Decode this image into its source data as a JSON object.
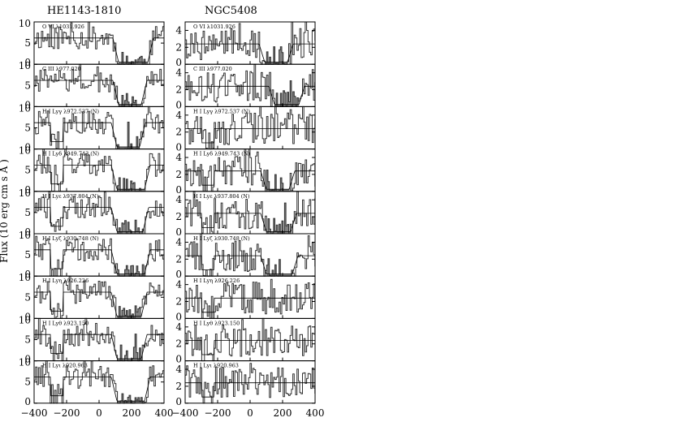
{
  "chart_data": {
    "type": "stacked-line-panels",
    "ylabel": "Flux (10   erg cm   s   Å  )",
    "columns": [
      {
        "title": "HE1143-1810",
        "xlim": [
          -400,
          400
        ],
        "xticks": [
          "−400",
          "−200",
          "0",
          "200",
          "400"
        ],
        "panels": [
          {
            "label": "O VI λ1031.926",
            "ylim": [
              0,
              10
            ],
            "yticks": [
              "0",
              "5",
              "10"
            ],
            "shade": [
              [
                120,
                300
              ]
            ]
          },
          {
            "label": "C III λ977.020",
            "ylim": [
              0,
              10
            ],
            "yticks": [
              "0",
              "5",
              "10"
            ],
            "shade": [
              [
                120,
                260
              ]
            ]
          },
          {
            "label": "H I Lyγ λ972.537 (N)",
            "ylim": [
              0,
              10
            ],
            "yticks": [
              "0",
              "5",
              "10"
            ],
            "shade": [
              [
                110,
                250
              ]
            ]
          },
          {
            "label": "H I Lyδ λ949.743 (N)",
            "ylim": [
              0,
              10
            ],
            "yticks": [
              "0",
              "5",
              "10"
            ],
            "shade": [
              [
                110,
                280
              ]
            ]
          },
          {
            "label": "H I Lyε λ937.804 (N)",
            "ylim": [
              0,
              10
            ],
            "yticks": [
              "0",
              "5",
              "10"
            ],
            "shade": [
              [
                110,
                270
              ]
            ]
          },
          {
            "label": "H I Lyζ λ930.748 (N)",
            "ylim": [
              0,
              10
            ],
            "yticks": [
              "0",
              "5",
              "10"
            ],
            "shade": [
              [
                110,
                280
              ]
            ]
          },
          {
            "label": "H I Lyη λ926.226",
            "ylim": [
              0,
              10
            ],
            "yticks": [
              "0",
              "5",
              "10"
            ],
            "shade": [
              [
                110,
                260
              ]
            ]
          },
          {
            "label": "H I Lyθ λ923.150",
            "ylim": [
              0,
              10
            ],
            "yticks": [
              "0",
              "5",
              "10"
            ],
            "shade": [
              [
                110,
                260
              ]
            ]
          },
          {
            "label": "H I Lyι λ920.963",
            "ylim": [
              0,
              10
            ],
            "yticks": [
              "0",
              "5",
              "10"
            ],
            "shade": [
              [
                110,
                280
              ]
            ]
          }
        ]
      },
      {
        "title": "NGC5408",
        "xlim": [
          -400,
          400
        ],
        "xticks": [
          "−400",
          "−200",
          "0",
          "200",
          "400"
        ],
        "panels": [
          {
            "label": "O VI λ1031.926",
            "ylim": [
              0,
              5
            ],
            "yticks": [
              "0",
              "2",
              "4"
            ],
            "shade": [
              [
                90,
                230
              ]
            ]
          },
          {
            "label": "C III λ977.020",
            "ylim": [
              0,
              5
            ],
            "yticks": [
              "0",
              "2",
              "4"
            ],
            "shade": [
              [
                150,
                300
              ]
            ]
          },
          {
            "label": "H I Lyγ λ972.537 (N)",
            "ylim": [
              0,
              5
            ],
            "yticks": [
              "0",
              "2",
              "4"
            ],
            "shade": []
          },
          {
            "label": "H I Lyδ λ949.743 (N)",
            "ylim": [
              0,
              5
            ],
            "yticks": [
              "0",
              "2",
              "4"
            ],
            "shade": [
              [
                100,
                240
              ]
            ]
          },
          {
            "label": "H I Lyε λ937.804 (N)",
            "ylim": [
              0,
              5
            ],
            "yticks": [
              "0",
              "2",
              "4"
            ],
            "shade": [
              [
                100,
                250
              ]
            ]
          },
          {
            "label": "H I Lyζ λ930.748 (N)",
            "ylim": [
              0,
              5
            ],
            "yticks": [
              "0",
              "2",
              "4"
            ],
            "shade": [
              [
                100,
                260
              ]
            ]
          },
          {
            "label": "H I Lyη λ926.226",
            "ylim": [
              0,
              5
            ],
            "yticks": [
              "0",
              "2",
              "4"
            ],
            "shade": []
          },
          {
            "label": "H I Lyθ λ923.150",
            "ylim": [
              0,
              5
            ],
            "yticks": [
              "0",
              "2",
              "4"
            ],
            "shade": []
          },
          {
            "label": "H I Lyι λ920.963",
            "ylim": [
              0,
              5
            ],
            "yticks": [
              "0",
              "2",
              "4"
            ],
            "shade": []
          }
        ]
      }
    ]
  }
}
